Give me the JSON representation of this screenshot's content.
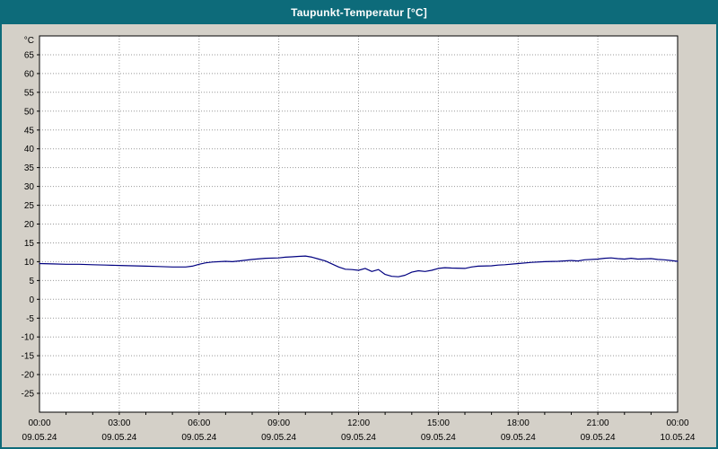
{
  "window": {
    "title": "Taupunkt-Temperatur [°C]"
  },
  "colors": {
    "frame_and_titlebar": "#0d6b7a",
    "titlebar_text": "#ffffff",
    "outer_background": "#d4d0c8",
    "plot_background": "#ffffff",
    "grid": "#999999",
    "axis": "#000000",
    "line": "#000080"
  },
  "chart_data": {
    "type": "line",
    "title": "Taupunkt-Temperatur [°C]",
    "xlabel": "",
    "ylabel": "°C",
    "ylim": [
      -30,
      70
    ],
    "grid": "dotted",
    "legend_position": "none",
    "plot_background": "#ffffff",
    "yticks": [
      65,
      60,
      55,
      50,
      45,
      40,
      35,
      30,
      25,
      20,
      15,
      10,
      5,
      0,
      -5,
      -10,
      -15,
      -20,
      -25
    ],
    "xticks": [
      {
        "hour": 0,
        "time": "00:00",
        "date": "09.05.24"
      },
      {
        "hour": 3,
        "time": "03:00",
        "date": "09.05.24"
      },
      {
        "hour": 6,
        "time": "06:00",
        "date": "09.05.24"
      },
      {
        "hour": 9,
        "time": "09:00",
        "date": "09.05.24"
      },
      {
        "hour": 12,
        "time": "12:00",
        "date": "09.05.24"
      },
      {
        "hour": 15,
        "time": "15:00",
        "date": "09.05.24"
      },
      {
        "hour": 18,
        "time": "18:00",
        "date": "09.05.24"
      },
      {
        "hour": 21,
        "time": "21:00",
        "date": "09.05.24"
      },
      {
        "hour": 24,
        "time": "00:00",
        "date": "10.05.24"
      }
    ],
    "series": [
      {
        "name": "Taupunkt-Temperatur",
        "unit": "°C",
        "color": "#000080",
        "points": [
          [
            0,
            9.5
          ],
          [
            0.5,
            9.4
          ],
          [
            1,
            9.3
          ],
          [
            1.5,
            9.3
          ],
          [
            2,
            9.2
          ],
          [
            2.5,
            9.1
          ],
          [
            3,
            9.0
          ],
          [
            3.5,
            8.9
          ],
          [
            4,
            8.8
          ],
          [
            4.5,
            8.7
          ],
          [
            5,
            8.6
          ],
          [
            5.5,
            8.6
          ],
          [
            5.75,
            8.8
          ],
          [
            6,
            9.3
          ],
          [
            6.25,
            9.7
          ],
          [
            6.5,
            9.9
          ],
          [
            7,
            10.1
          ],
          [
            7.25,
            10.0
          ],
          [
            7.5,
            10.2
          ],
          [
            8,
            10.6
          ],
          [
            8.5,
            10.9
          ],
          [
            9,
            11.0
          ],
          [
            9.25,
            11.2
          ],
          [
            9.5,
            11.3
          ],
          [
            9.75,
            11.4
          ],
          [
            10,
            11.5
          ],
          [
            10.25,
            11.2
          ],
          [
            10.5,
            10.7
          ],
          [
            10.75,
            10.2
          ],
          [
            11,
            9.4
          ],
          [
            11.25,
            8.6
          ],
          [
            11.5,
            8.0
          ],
          [
            11.75,
            7.9
          ],
          [
            12,
            7.7
          ],
          [
            12.25,
            8.2
          ],
          [
            12.5,
            7.4
          ],
          [
            12.75,
            7.9
          ],
          [
            13,
            6.6
          ],
          [
            13.25,
            6.1
          ],
          [
            13.5,
            6.0
          ],
          [
            13.75,
            6.4
          ],
          [
            14,
            7.2
          ],
          [
            14.25,
            7.6
          ],
          [
            14.5,
            7.4
          ],
          [
            14.75,
            7.7
          ],
          [
            15,
            8.2
          ],
          [
            15.25,
            8.4
          ],
          [
            15.5,
            8.3
          ],
          [
            16,
            8.2
          ],
          [
            16.25,
            8.6
          ],
          [
            16.5,
            8.8
          ],
          [
            17,
            8.9
          ],
          [
            17.25,
            9.1
          ],
          [
            17.5,
            9.2
          ],
          [
            18,
            9.5
          ],
          [
            18.5,
            9.8
          ],
          [
            19,
            10.0
          ],
          [
            19.5,
            10.1
          ],
          [
            20,
            10.3
          ],
          [
            20.25,
            10.2
          ],
          [
            20.5,
            10.5
          ],
          [
            21,
            10.7
          ],
          [
            21.25,
            10.9
          ],
          [
            21.5,
            11.0
          ],
          [
            21.75,
            10.8
          ],
          [
            22,
            10.7
          ],
          [
            22.25,
            10.9
          ],
          [
            22.5,
            10.7
          ],
          [
            23,
            10.8
          ],
          [
            23.25,
            10.6
          ],
          [
            23.5,
            10.5
          ],
          [
            23.75,
            10.3
          ],
          [
            24,
            10.1
          ]
        ]
      }
    ]
  }
}
